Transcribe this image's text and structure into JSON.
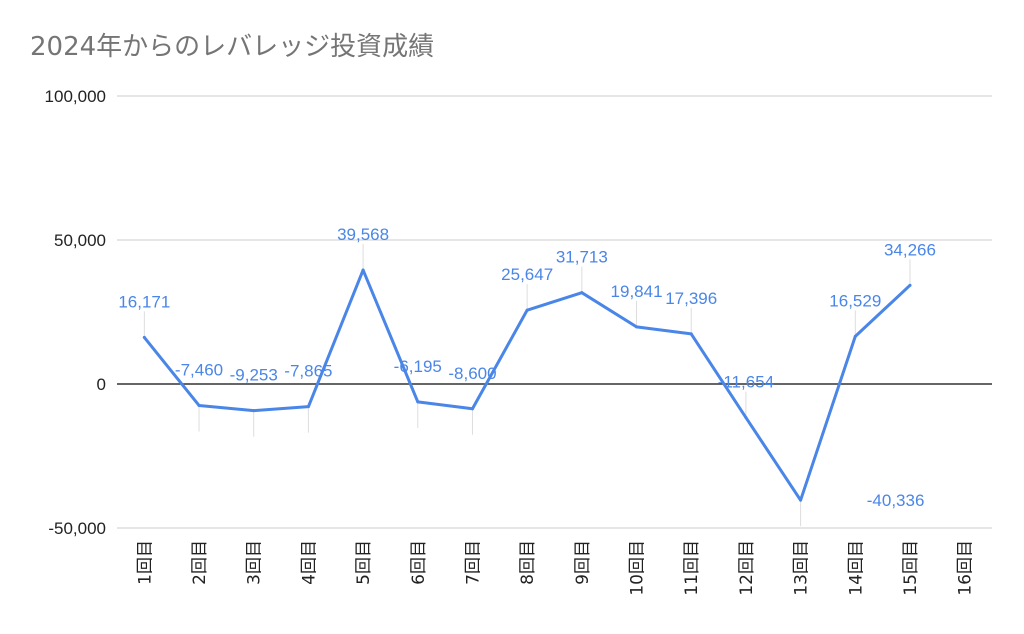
{
  "chart_data": {
    "type": "line",
    "title": "2024年からのレバレッジ投資成績",
    "xlabel": "",
    "ylabel": "",
    "ylim": [
      -50000,
      100000
    ],
    "yticks": [
      100000,
      50000,
      0,
      -50000
    ],
    "ytick_labels": [
      "100,000",
      "50,000",
      "0",
      "-50,000"
    ],
    "categories": [
      "1回目",
      "2回目",
      "3回目",
      "4回目",
      "5回目",
      "6回目",
      "7回目",
      "8回目",
      "9回目",
      "10回目",
      "11回目",
      "12回目",
      "13回目",
      "14回目",
      "15回目",
      "16回目"
    ],
    "series": [
      {
        "color": "#4a86e8",
        "values": [
          16171,
          -7460,
          -9253,
          -7865,
          39568,
          -6195,
          -8600,
          25647,
          31713,
          19841,
          17396,
          -11654,
          -40336,
          16529,
          34266,
          null
        ],
        "labels": [
          "16,171",
          "-7,460",
          "-9,253",
          "-7,865",
          "39,568",
          "-6,195",
          "-8,600",
          "25,647",
          "31,713",
          "19,841",
          "17,396",
          "-11,654",
          "-40,336",
          "16,529",
          "34,266",
          ""
        ]
      }
    ],
    "grid": true,
    "legend": "none"
  }
}
